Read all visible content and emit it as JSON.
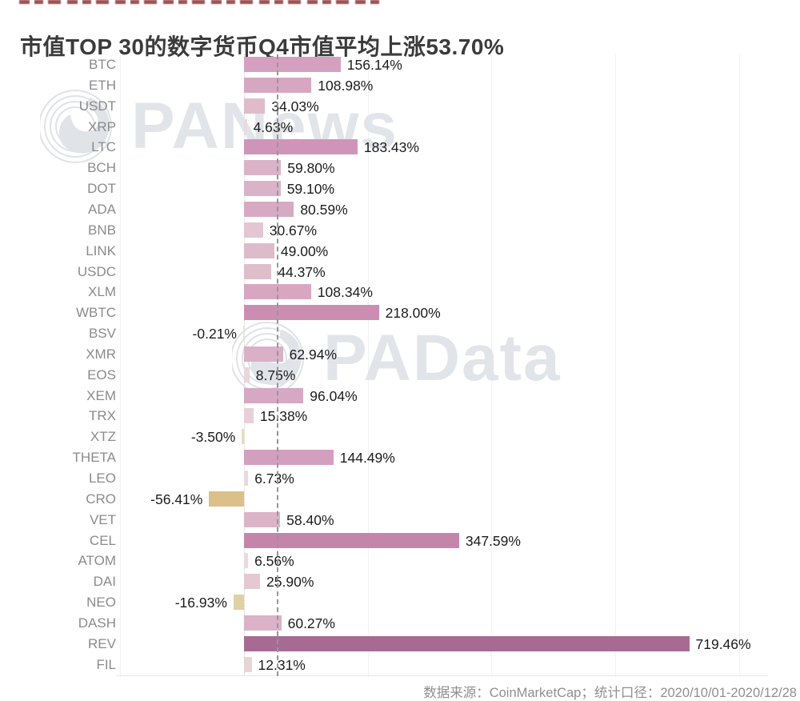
{
  "header": {
    "title": "市值TOP 30的数字货币Q4市值平均上涨53.70%"
  },
  "footer": {
    "source_note": "数据来源：CoinMarketCap；统计口径：2020/10/01-2020/12/28"
  },
  "watermarks": {
    "top": "PANews",
    "middle": "PAData"
  },
  "colors": {
    "title_text": "#3b3b3b",
    "category_text": "#8b8b8d",
    "value_text": "#1c1c1c",
    "average_line": "#96969c",
    "watermark_text": "#e1e4e9",
    "negative_bar": "#dcc08a"
  },
  "chart_data": {
    "type": "bar",
    "orientation": "horizontal",
    "title": "市值TOP 30的数字货币Q4市值平均上涨53.70%",
    "value_unit": "%",
    "average_pct": 53.7,
    "xlim": [
      -200,
      900
    ],
    "grid": {
      "interval_pct": 200,
      "lines": [
        -200,
        200,
        400,
        600,
        800
      ]
    },
    "series": [
      {
        "name": "BTC",
        "value": 156.14,
        "label": "156.14%",
        "color": "#d5a0bf"
      },
      {
        "name": "ETH",
        "value": 108.98,
        "label": "108.98%",
        "color": "#d7a7c2"
      },
      {
        "name": "USDT",
        "value": 34.03,
        "label": "34.03%",
        "color": "#e0bcca"
      },
      {
        "name": "XRP",
        "value": 4.63,
        "label": "4.63%",
        "color": "#eadade"
      },
      {
        "name": "LTC",
        "value": 183.43,
        "label": "183.43%",
        "color": "#cf95b8"
      },
      {
        "name": "BCH",
        "value": 59.8,
        "label": "59.80%",
        "color": "#dbb3c8"
      },
      {
        "name": "DOT",
        "value": 59.1,
        "label": "59.10%",
        "color": "#dbb3c8"
      },
      {
        "name": "ADA",
        "value": 80.59,
        "label": "80.59%",
        "color": "#d7a9c3"
      },
      {
        "name": "BNB",
        "value": 30.67,
        "label": "30.67%",
        "color": "#e3c6d1"
      },
      {
        "name": "LINK",
        "value": 49.0,
        "label": "49.00%",
        "color": "#ddbbca"
      },
      {
        "name": "USDC",
        "value": 44.37,
        "label": "44.37%",
        "color": "#dfbecc"
      },
      {
        "name": "XLM",
        "value": 108.34,
        "label": "108.34%",
        "color": "#d7a7c2"
      },
      {
        "name": "WBTC",
        "value": 218.0,
        "label": "218.00%",
        "color": "#cc8db3"
      },
      {
        "name": "BSV",
        "value": -0.21,
        "label": "-0.21%",
        "color": "#e8e0d6"
      },
      {
        "name": "XMR",
        "value": 62.94,
        "label": "62.94%",
        "color": "#dab0c6"
      },
      {
        "name": "EOS",
        "value": 8.75,
        "label": "8.75%",
        "color": "#e9d6dc"
      },
      {
        "name": "XEM",
        "value": 96.04,
        "label": "96.04%",
        "color": "#d7a8c3"
      },
      {
        "name": "TRX",
        "value": 15.38,
        "label": "15.38%",
        "color": "#e7d0d8"
      },
      {
        "name": "XTZ",
        "value": -3.5,
        "label": "-3.50%",
        "color": "#e5dcc6"
      },
      {
        "name": "THETA",
        "value": 144.49,
        "label": "144.49%",
        "color": "#d39fbe"
      },
      {
        "name": "LEO",
        "value": 6.73,
        "label": "6.73%",
        "color": "#ead9de"
      },
      {
        "name": "CRO",
        "value": -56.41,
        "label": "-56.41%",
        "color": "#dcc08a"
      },
      {
        "name": "VET",
        "value": 58.4,
        "label": "58.40%",
        "color": "#dcb4c8"
      },
      {
        "name": "CEL",
        "value": 347.59,
        "label": "347.59%",
        "color": "#c585ab"
      },
      {
        "name": "ATOM",
        "value": 6.56,
        "label": "6.56%",
        "color": "#ead9de"
      },
      {
        "name": "DAI",
        "value": 25.9,
        "label": "25.90%",
        "color": "#e4c9d3"
      },
      {
        "name": "NEO",
        "value": -16.93,
        "label": "-16.93%",
        "color": "#e0d1a5"
      },
      {
        "name": "DASH",
        "value": 60.27,
        "label": "60.27%",
        "color": "#dbb2c7"
      },
      {
        "name": "REV",
        "value": 719.46,
        "label": "719.46%",
        "color": "#a76b93"
      },
      {
        "name": "FIL",
        "value": 12.31,
        "label": "12.31%",
        "color": "#e6d5d2"
      }
    ]
  }
}
